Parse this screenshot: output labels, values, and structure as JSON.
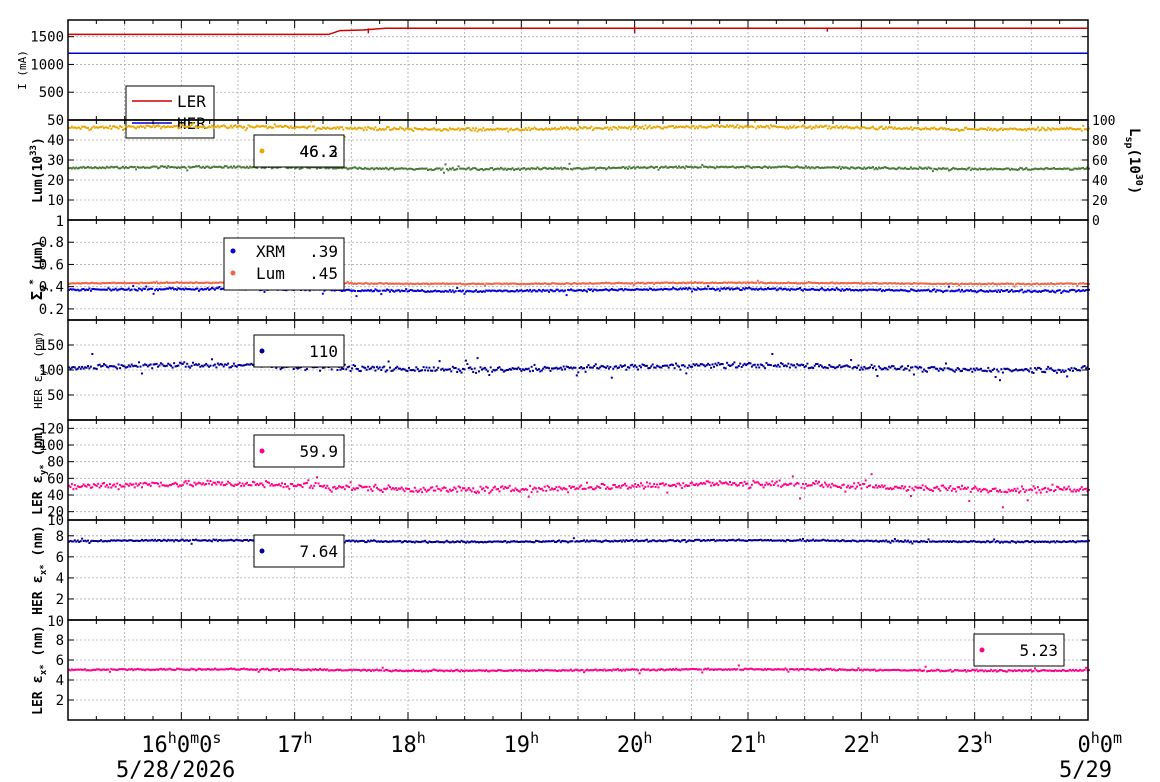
{
  "chart_data": [
    {
      "type": "line",
      "ylabel": "I (mA)",
      "ylim": [
        0,
        1800
      ],
      "yticks": [
        500,
        1000,
        1500
      ],
      "legend": {
        "placement": "bottom-left",
        "entries": [
          "LER",
          "HER"
        ]
      },
      "series": [
        {
          "name": "LER",
          "color": "#cc0000",
          "segments": [
            [
              0,
              1540
            ],
            [
              2.3,
              1540
            ],
            [
              2.4,
              1610
            ],
            [
              2.6,
              1620
            ],
            [
              2.8,
              1650
            ],
            [
              9.0,
              1650
            ]
          ],
          "dips": [
            [
              2.65,
              1560
            ],
            [
              5.0,
              1560
            ],
            [
              6.7,
              1590
            ]
          ]
        },
        {
          "name": "HER",
          "color": "#0000cc",
          "segments": [
            [
              0,
              1200
            ],
            [
              9.0,
              1200
            ]
          ]
        }
      ]
    },
    {
      "type": "scatter",
      "ylabel": "Lum(10^33)",
      "ylabel_base": "Lum(10",
      "ylabel_exp": "33",
      "ylabel_end": ")",
      "ylim": [
        0,
        50
      ],
      "yticks": [
        10,
        20,
        30,
        40,
        50
      ],
      "ylabel_right": "Lsp(10^30)",
      "ylabel_right_parts": {
        "base": "L",
        "sub": "sp",
        "mid": "(10",
        "exp": "30",
        "end": ")"
      },
      "yticks_right": [
        0,
        20,
        40,
        60,
        80,
        100
      ],
      "legend_value": "46.2",
      "legend_value_overlap": "46.3",
      "series": [
        {
          "name": "Lum",
          "color": "#e6a800",
          "mean": 46,
          "noise": 1.2
        },
        {
          "name": "Lsp",
          "color": "#4a7a3a",
          "mean": 26,
          "noise": 0.8
        }
      ]
    },
    {
      "type": "scatter",
      "ylabel": "Σy* (μm)",
      "ylabel_base": "Σ",
      "ylabel_sub": "y",
      "ylabel_sup": "*",
      "ylabel_end": " (μm)",
      "ylim": [
        0.1,
        1.0
      ],
      "yticks": [
        0.2,
        0.4,
        0.6,
        0.8
      ],
      "yticks_labels": [
        "0.2",
        "0.4",
        "0.6",
        "0.8"
      ],
      "top_label": "1",
      "legend": [
        {
          "name": "XRM",
          "value": ".39",
          "color": "#0000dd"
        },
        {
          "name": "Lum",
          "value": ".45",
          "color": "#ee6644"
        }
      ],
      "series": [
        {
          "name": "XRM",
          "color": "#0000dd",
          "mean": 0.37,
          "noise": 0.015
        },
        {
          "name": "Lum",
          "color": "#ee6644",
          "mean": 0.43,
          "noise": 0.008
        }
      ]
    },
    {
      "type": "scatter",
      "ylabel": "HER εy* (pm)",
      "ylabel_prefix": "HER ",
      "ylabel_base": "ε",
      "ylabel_sub": "y*",
      "ylabel_end": " (pm)",
      "ylim": [
        0,
        200
      ],
      "yticks": [
        50,
        100,
        150
      ],
      "legend_value": "110",
      "series": [
        {
          "name": "HER",
          "color": "#000099",
          "mean": 105,
          "noise": 8
        }
      ]
    },
    {
      "type": "scatter",
      "ylabel": "LER εy* (pm)",
      "ylabel_prefix": "LER ",
      "ylabel_base": "ε",
      "ylabel_sub": "y*",
      "ylabel_end": " (pm)",
      "ylim": [
        10,
        130
      ],
      "yticks": [
        10,
        20,
        40,
        60,
        80,
        100,
        120
      ],
      "legend_value": "59.9",
      "series": [
        {
          "name": "LER",
          "color": "#ff0088",
          "mean": 50,
          "noise": 6
        }
      ]
    },
    {
      "type": "scatter",
      "ylabel": "HER εx* (nm)",
      "ylabel_prefix": "HER ",
      "ylabel_base": "ε",
      "ylabel_sub": "x*",
      "ylabel_end": " (nm)",
      "ylim": [
        0,
        9.5
      ],
      "yticks": [
        2,
        4,
        6,
        8
      ],
      "legend_value": "7.64",
      "series": [
        {
          "name": "HER",
          "color": "#000099",
          "mean": 7.5,
          "noise": 0.12
        }
      ]
    },
    {
      "type": "scatter",
      "ylabel": "LER εx* (nm)",
      "ylabel_prefix": "LER ",
      "ylabel_base": "ε",
      "ylabel_sub": "x*",
      "ylabel_end": " (nm)",
      "ylim": [
        0,
        10
      ],
      "yticks": [
        2,
        4,
        6,
        8
      ],
      "top_label": "10",
      "legend_value": "5.23",
      "series": [
        {
          "name": "LER",
          "color": "#ff0088",
          "mean": 5.0,
          "noise": 0.12
        }
      ]
    }
  ],
  "xaxis": {
    "start_hour": 15,
    "end_hour": 24,
    "ticks": [
      {
        "hour": 16,
        "main": "16",
        "sup": "h",
        "main2": "0",
        "sup2": "m",
        "main3": "0",
        "sup3": "s"
      },
      {
        "hour": 17,
        "main": "17",
        "sup": "h"
      },
      {
        "hour": 18,
        "main": "18",
        "sup": "h"
      },
      {
        "hour": 19,
        "main": "19",
        "sup": "h"
      },
      {
        "hour": 20,
        "main": "20",
        "sup": "h"
      },
      {
        "hour": 21,
        "main": "21",
        "sup": "h"
      },
      {
        "hour": 22,
        "main": "22",
        "sup": "h"
      },
      {
        "hour": 23,
        "main": "23",
        "sup": "h"
      },
      {
        "hour": 24,
        "main": "0",
        "sup": "h",
        "main2": "0",
        "sup2": "m"
      }
    ],
    "date_start": "5/28/2026",
    "date_end": "5/29"
  }
}
